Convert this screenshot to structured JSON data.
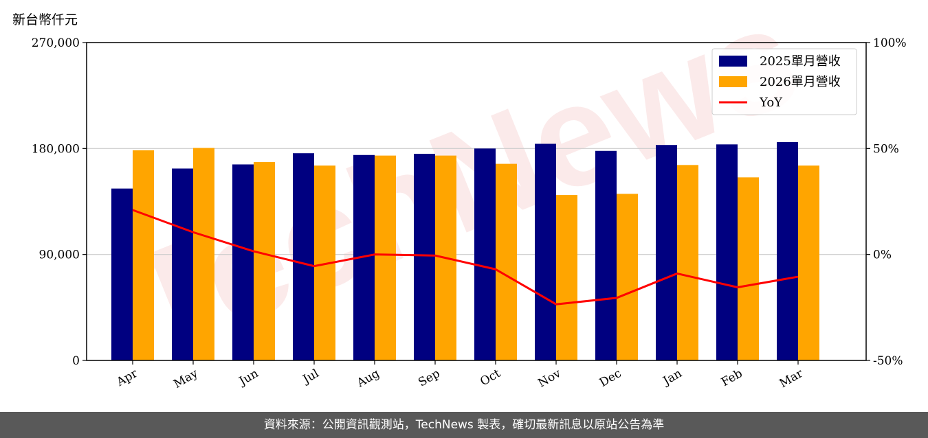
{
  "header": {
    "unit_label": "新台幣仟元"
  },
  "footer": {
    "source_text": "資料來源：公開資訊觀測站，TechNews 製表，確切最新訊息以原站公告為準"
  },
  "chart_data": {
    "type": "bar",
    "categories": [
      "Apr",
      "May",
      "Jun",
      "Jul",
      "Aug",
      "Sep",
      "Oct",
      "Nov",
      "Dec",
      "Jan",
      "Feb",
      "Mar"
    ],
    "series": [
      {
        "name": "2025單月營收",
        "kind": "bar",
        "color": "#000080",
        "values": [
          146000,
          163000,
          166500,
          176000,
          174500,
          175500,
          180000,
          184000,
          178000,
          183000,
          183500,
          185500
        ]
      },
      {
        "name": "2026單月營收",
        "kind": "bar",
        "color": "#FFA500",
        "values": [
          178500,
          180500,
          168500,
          165500,
          174000,
          174000,
          167000,
          140500,
          141500,
          166000,
          155500,
          165500
        ]
      },
      {
        "name": "YoY",
        "kind": "line",
        "axis": "right",
        "color": "#FF0000",
        "values": [
          21.0,
          10.5,
          1.5,
          -5.5,
          0.0,
          -0.5,
          -7.0,
          -23.5,
          -20.5,
          -9.0,
          -15.5,
          -10.5
        ]
      }
    ],
    "y_left": {
      "lim": [
        0,
        270000
      ],
      "ticks": [
        0,
        90000,
        180000,
        270000
      ],
      "tick_labels": [
        "0",
        "90,000",
        "180,000",
        "270,000"
      ]
    },
    "y_right": {
      "lim": [
        -50,
        100
      ],
      "ticks": [
        -50,
        0,
        50,
        100
      ],
      "tick_labels": [
        "-50%",
        "0%",
        "50%",
        "100%"
      ]
    },
    "grid": "horizontal",
    "legend_position": "top-right",
    "watermark": "TechNews"
  }
}
